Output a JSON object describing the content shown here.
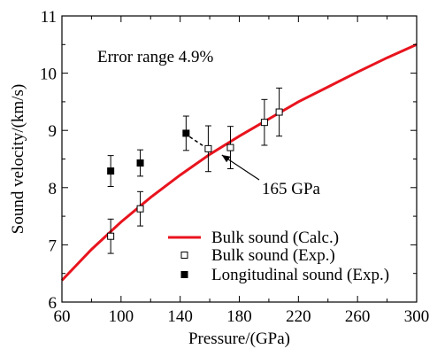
{
  "chart_data": {
    "type": "scatter",
    "xlabel": "Pressure/(GPa)",
    "ylabel": "Sound velocity/(km/s)",
    "xlim": [
      60,
      300
    ],
    "ylim": [
      6,
      11
    ],
    "x_ticks": [
      "60",
      "100",
      "140",
      "180",
      "220",
      "260",
      "300"
    ],
    "y_ticks": [
      "6",
      "7",
      "8",
      "9",
      "10",
      "11"
    ],
    "grid": false,
    "legend_position": "bottom-right",
    "annotations": {
      "error_range": "Error range 4.9%",
      "pressure_label": "165 GPa"
    },
    "series": [
      {
        "name": "Bulk sound (Calc.)",
        "kind": "line",
        "color": "#e8141e",
        "x": [
          60,
          80,
          100,
          120,
          140,
          160,
          180,
          200,
          220,
          240,
          260,
          280,
          300
        ],
        "y": [
          6.38,
          6.92,
          7.4,
          7.83,
          8.22,
          8.58,
          8.9,
          9.2,
          9.5,
          9.76,
          10.02,
          10.27,
          10.5
        ]
      },
      {
        "name": "Bulk sound (Exp.)",
        "kind": "open-square",
        "color": "#000000",
        "x": [
          93,
          113,
          159,
          174,
          197,
          207
        ],
        "y": [
          7.15,
          7.63,
          8.68,
          8.7,
          9.14,
          9.32
        ],
        "err": [
          0.3,
          0.3,
          0.4,
          0.37,
          0.4,
          0.42
        ]
      },
      {
        "name": "Longitudinal sound (Exp.)",
        "kind": "filled-square",
        "color": "#000000",
        "x": [
          93,
          113,
          144
        ],
        "y": [
          8.29,
          8.43,
          8.95
        ],
        "err": [
          0.27,
          0.23,
          0.3
        ]
      }
    ]
  }
}
